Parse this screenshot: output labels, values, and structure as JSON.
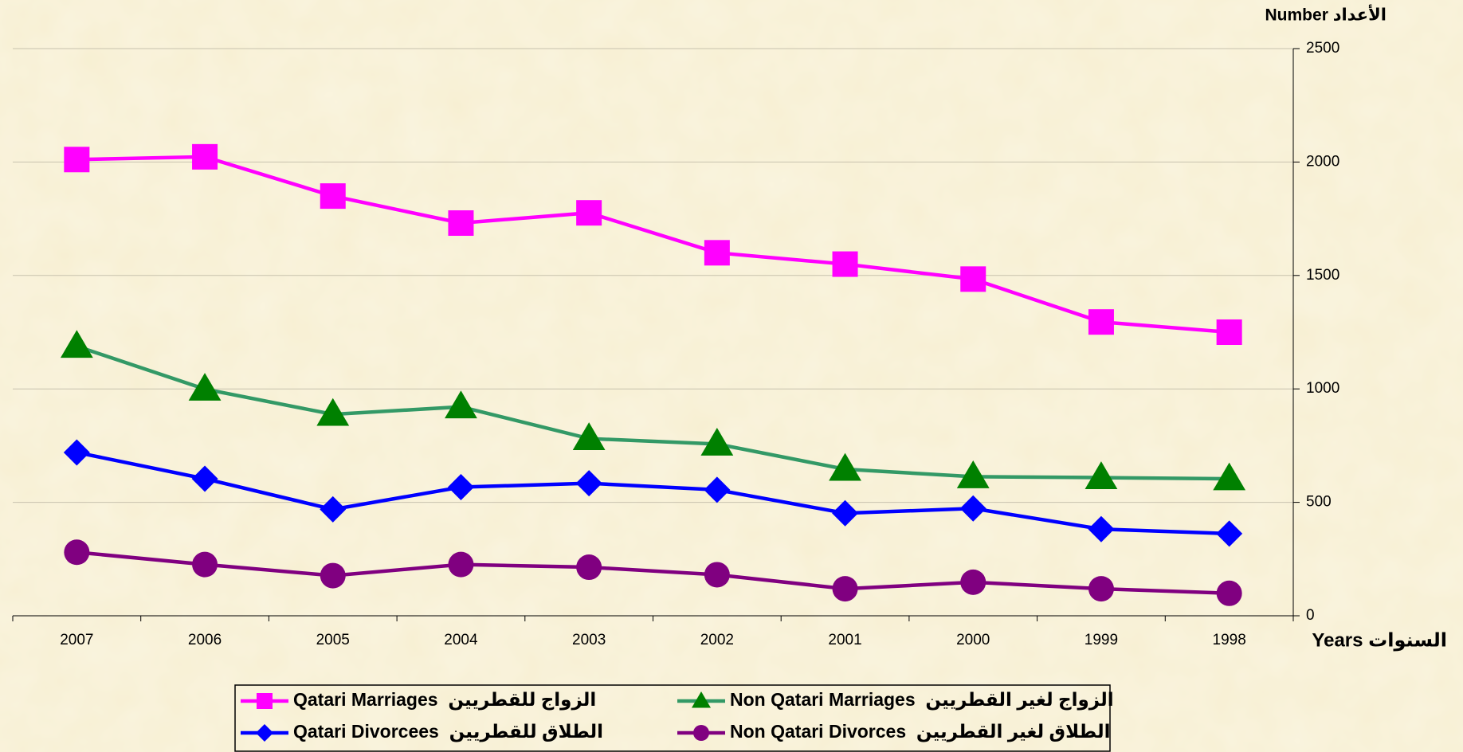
{
  "chart_data": {
    "type": "line",
    "y_label": "Number الأعداد",
    "x_label": "Years السنوات",
    "categories": [
      "2007",
      "2006",
      "2005",
      "2004",
      "2003",
      "2002",
      "2001",
      "2000",
      "1999",
      "1998"
    ],
    "series": [
      {
        "name": "Qatari Marriages  الزواج للقطريين",
        "color": "#ff00ff",
        "marker": "square",
        "values": [
          2011,
          2023,
          1850,
          1731,
          1776,
          1600,
          1550,
          1484,
          1295,
          1250
        ]
      },
      {
        "name": "Non Qatari Marriages  الزواج لغير القطريين",
        "color": "#339966",
        "marker_color": "#008000",
        "marker": "triangle",
        "values": [
          1188,
          999,
          888,
          921,
          781,
          757,
          646,
          613,
          609,
          604
        ]
      },
      {
        "name": "Qatari Divorcees  الطلاق للقطريين",
        "color": "#0000ff",
        "marker": "diamond",
        "values": [
          720,
          604,
          469,
          567,
          584,
          555,
          452,
          473,
          382,
          362
        ]
      },
      {
        "name": "Non Qatari Divorces  الطلاق لغير القطريين",
        "color": "#800080",
        "marker": "circle",
        "values": [
          280,
          226,
          177,
          226,
          214,
          181,
          119,
          148,
          119,
          99
        ]
      }
    ],
    "ylim": [
      0,
      2500
    ],
    "yticks": [
      0,
      500,
      1000,
      1500,
      2000,
      2500
    ],
    "grid": true,
    "y_axis_side": "right"
  }
}
